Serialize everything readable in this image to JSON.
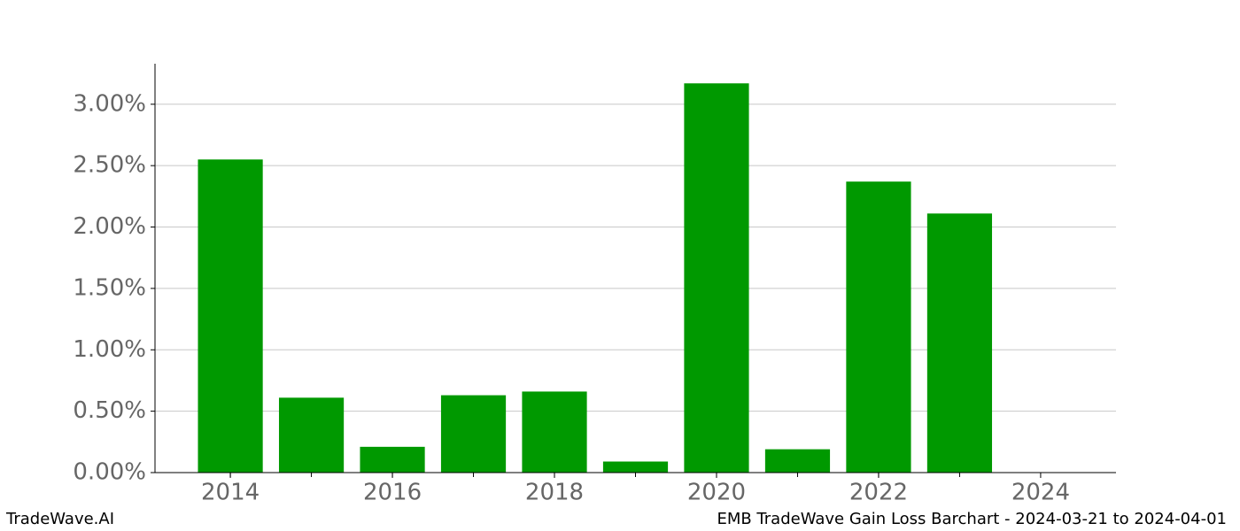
{
  "chart_data": {
    "type": "bar",
    "title": "EMB TradeWave Gain Loss Barchart - 2024-03-21 to 2024-04-01",
    "watermark": "TradeWave.AI",
    "x": [
      2014,
      2015,
      2016,
      2017,
      2018,
      2019,
      2020,
      2021,
      2022,
      2023
    ],
    "values": [
      2.55,
      0.61,
      0.21,
      0.63,
      0.66,
      0.09,
      3.17,
      0.19,
      2.37,
      2.11
    ],
    "color": "#009900",
    "xlim": [
      2013.07,
      2024.93
    ],
    "xticks": [
      2014,
      2016,
      2018,
      2020,
      2022,
      2024
    ],
    "ylim": [
      0,
      3.33
    ],
    "yticks": [
      {
        "value": 0,
        "label": "0.00%"
      },
      {
        "value": 0.5,
        "label": "0.50%"
      },
      {
        "value": 1,
        "label": "1.00%"
      },
      {
        "value": 1.5,
        "label": "1.50%"
      },
      {
        "value": 2,
        "label": "2.00%"
      },
      {
        "value": 2.5,
        "label": "2.50%"
      },
      {
        "value": 3,
        "label": "3.00%"
      }
    ],
    "grid": true
  }
}
